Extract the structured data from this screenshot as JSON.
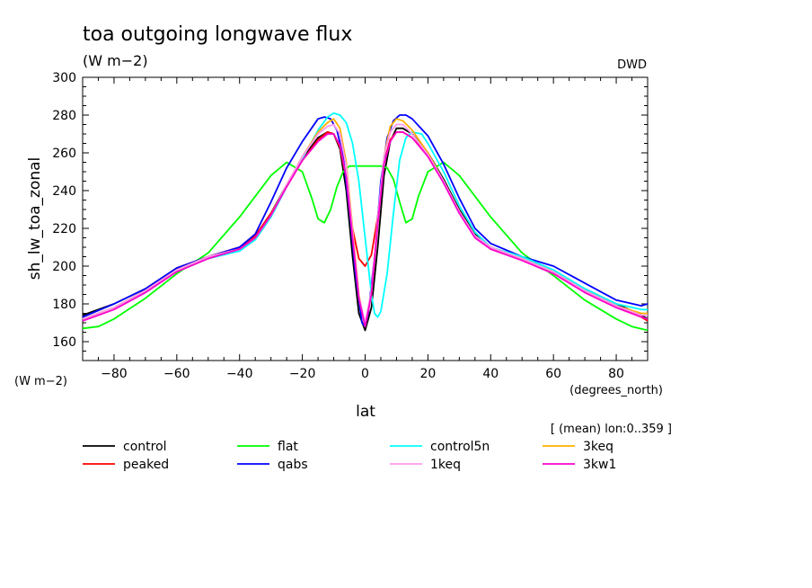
{
  "chart_data": {
    "type": "line",
    "title": "toa outgoing longwave flux",
    "subtitle": "(W m−2)",
    "source": "DWD",
    "ylabel": "sh_lw_toa_zonal",
    "yunits": "(W m−2)",
    "xlabel": "lat",
    "xunits": "(degrees_north)",
    "note": "[ (mean) lon:0..359 ]",
    "xlim": [
      -90,
      90
    ],
    "ylim": [
      150,
      300
    ],
    "xticks": [
      -80,
      -60,
      -40,
      -20,
      0,
      20,
      40,
      60,
      80
    ],
    "yticks": [
      160,
      180,
      200,
      220,
      240,
      260,
      280,
      300
    ],
    "grid": false,
    "legend_position": "bottom",
    "series": [
      {
        "name": "control",
        "color": "#000000",
        "x": [
          -90,
          -80,
          -70,
          -60,
          -50,
          -40,
          -35,
          -30,
          -25,
          -20,
          -15,
          -12,
          -10,
          -8,
          -6,
          -4,
          -2,
          0,
          2,
          4,
          6,
          8,
          10,
          12,
          15,
          20,
          25,
          30,
          35,
          40,
          50,
          60,
          70,
          80,
          88,
          90
        ],
        "y": [
          174,
          180,
          188,
          199,
          205,
          210,
          216,
          228,
          243,
          257,
          268,
          271,
          270,
          262,
          240,
          205,
          175,
          166,
          178,
          210,
          248,
          266,
          273,
          273,
          270,
          260,
          246,
          230,
          217,
          210,
          204,
          197,
          188,
          180,
          174,
          172
        ]
      },
      {
        "name": "peaked",
        "color": "#ff0000",
        "x": [
          -90,
          -80,
          -70,
          -60,
          -50,
          -40,
          -35,
          -30,
          -25,
          -20,
          -15,
          -12,
          -10,
          -8,
          -6,
          -4,
          -2,
          0,
          2,
          4,
          6,
          8,
          10,
          12,
          15,
          20,
          25,
          30,
          35,
          40,
          50,
          60,
          70,
          80,
          88,
          90
        ],
        "y": [
          172,
          178,
          187,
          199,
          205,
          210,
          216,
          228,
          242,
          256,
          267,
          271,
          270,
          263,
          246,
          220,
          204,
          200,
          206,
          226,
          255,
          267,
          271,
          271,
          268,
          259,
          245,
          229,
          216,
          210,
          204,
          197,
          187,
          179,
          173,
          171
        ]
      },
      {
        "name": "flat",
        "color": "#00ff00",
        "x": [
          -90,
          -85,
          -80,
          -70,
          -60,
          -50,
          -40,
          -30,
          -25,
          -20,
          -17,
          -15,
          -13,
          -11,
          -9,
          -7,
          -5,
          -3,
          0,
          3,
          5,
          7,
          9,
          11,
          13,
          15,
          17,
          20,
          25,
          30,
          40,
          50,
          60,
          70,
          80,
          85,
          90
        ],
        "y": [
          167,
          168,
          172,
          183,
          196,
          207,
          226,
          248,
          255,
          250,
          236,
          225,
          223,
          230,
          242,
          250,
          253,
          253,
          253,
          253,
          253,
          252,
          246,
          234,
          223,
          225,
          237,
          250,
          255,
          248,
          226,
          207,
          195,
          182,
          172,
          168,
          166
        ]
      },
      {
        "name": "qabs",
        "color": "#0000ff",
        "x": [
          -90,
          -80,
          -70,
          -60,
          -50,
          -40,
          -35,
          -30,
          -25,
          -20,
          -15,
          -13,
          -11,
          -9,
          -7,
          -5,
          -3,
          -1,
          0,
          1,
          3,
          5,
          7,
          9,
          11,
          13,
          15,
          20,
          25,
          30,
          35,
          40,
          50,
          60,
          70,
          80,
          88,
          90
        ],
        "y": [
          173,
          180,
          188,
          199,
          205,
          210,
          217,
          234,
          252,
          266,
          278,
          279,
          278,
          272,
          258,
          230,
          195,
          170,
          168,
          175,
          205,
          245,
          268,
          277,
          280,
          280,
          278,
          269,
          254,
          236,
          220,
          212,
          205,
          200,
          191,
          182,
          179,
          180
        ]
      },
      {
        "name": "control5n",
        "color": "#00ffff",
        "x": [
          -90,
          -80,
          -70,
          -60,
          -50,
          -40,
          -35,
          -30,
          -25,
          -20,
          -15,
          -12,
          -10,
          -8,
          -6,
          -4,
          -2,
          0,
          2,
          3,
          4,
          5,
          7,
          9,
          11,
          13,
          15,
          18,
          20,
          25,
          30,
          35,
          40,
          50,
          60,
          70,
          80,
          88,
          90
        ],
        "y": [
          172,
          178,
          186,
          197,
          204,
          208,
          214,
          226,
          242,
          257,
          272,
          279,
          281,
          280,
          276,
          265,
          245,
          215,
          185,
          175,
          173,
          176,
          196,
          228,
          256,
          268,
          271,
          270,
          265,
          250,
          232,
          218,
          210,
          205,
          198,
          188,
          180,
          177,
          177
        ]
      },
      {
        "name": "3keq",
        "color": "#ffb000",
        "x": [
          -90,
          -80,
          -70,
          -60,
          -50,
          -40,
          -35,
          -30,
          -25,
          -20,
          -15,
          -12,
          -10,
          -8,
          -6,
          -4,
          -2,
          0,
          2,
          4,
          6,
          8,
          10,
          12,
          15,
          20,
          25,
          30,
          35,
          40,
          50,
          60,
          70,
          80,
          88,
          90
        ],
        "y": [
          172,
          178,
          187,
          198,
          205,
          209,
          215,
          227,
          243,
          258,
          271,
          276,
          278,
          273,
          255,
          220,
          185,
          168,
          185,
          222,
          258,
          274,
          278,
          277,
          272,
          260,
          245,
          229,
          216,
          210,
          204,
          197,
          187,
          179,
          175,
          175
        ]
      },
      {
        "name": "1keq",
        "color": "#ff99ee",
        "x": [
          -90,
          -80,
          -70,
          -60,
          -50,
          -40,
          -35,
          -30,
          -25,
          -20,
          -15,
          -12,
          -10,
          -8,
          -6,
          -4,
          -2,
          0,
          2,
          4,
          6,
          8,
          10,
          12,
          15,
          20,
          25,
          30,
          35,
          40,
          50,
          60,
          70,
          80,
          88,
          90
        ],
        "y": [
          172,
          178,
          187,
          198,
          205,
          209,
          215,
          227,
          243,
          258,
          270,
          274,
          275,
          270,
          253,
          218,
          184,
          170,
          187,
          225,
          258,
          271,
          275,
          275,
          270,
          259,
          245,
          229,
          216,
          210,
          204,
          197,
          187,
          179,
          174,
          174
        ]
      },
      {
        "name": "3kw1",
        "color": "#ff00cc",
        "x": [
          -90,
          -80,
          -70,
          -60,
          -50,
          -40,
          -35,
          -30,
          -25,
          -20,
          -15,
          -12,
          -10,
          -8,
          -6,
          -4,
          -2,
          0,
          2,
          4,
          6,
          8,
          10,
          12,
          15,
          20,
          25,
          30,
          35,
          40,
          50,
          60,
          70,
          80,
          88,
          90
        ],
        "y": [
          171,
          177,
          186,
          197,
          204,
          209,
          215,
          227,
          242,
          256,
          266,
          270,
          270,
          264,
          247,
          215,
          183,
          168,
          185,
          222,
          254,
          266,
          271,
          271,
          268,
          258,
          244,
          228,
          215,
          209,
          203,
          196,
          186,
          178,
          173,
          172
        ]
      }
    ]
  }
}
